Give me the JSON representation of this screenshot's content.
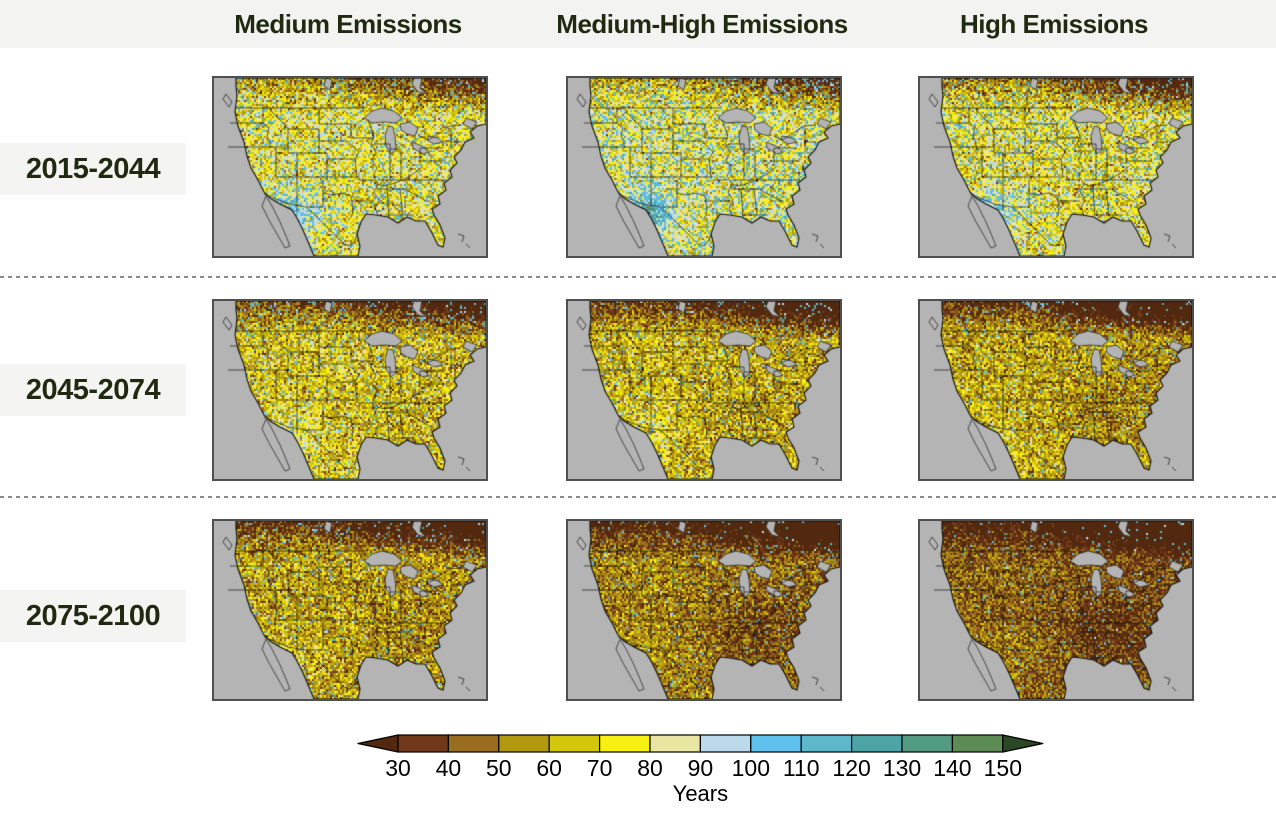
{
  "header": {
    "columns": [
      "Medium Emissions",
      "Medium-High Emissions",
      "High Emissions"
    ]
  },
  "row_labels": [
    "2015-2044",
    "2045-2074",
    "2075-2100"
  ],
  "styles": {
    "band_bg": "#f3f3f1",
    "label_box_bg": "#f4f4f2",
    "heading_color": "#1f2a10",
    "separator_color": "#8c8c8c",
    "frame_color": "#4f4f4f",
    "figure_bg": "#ffffff"
  },
  "chart_data": {
    "type": "heatmap",
    "columns": [
      "Medium Emissions",
      "Medium-High Emissions",
      "High Emissions"
    ],
    "rows": [
      "2015-2044",
      "2045-2074",
      "2075-2100"
    ],
    "description_of_panels": "3x3 grid of conterminous US maps; speckled values in Years, browner (fewer years) toward later periods and higher emissions, especially in Canada/Northeast and Southeast; scattered blue specks (more years) mainly in the West for early periods",
    "ocean_color": "#b4b4b4",
    "colorbar": {
      "label": "Years",
      "ticks": [
        30,
        40,
        50,
        60,
        70,
        80,
        90,
        100,
        110,
        120,
        130,
        140,
        150
      ],
      "segment_colors": [
        "#71391a",
        "#9a6c1f",
        "#b2980e",
        "#d4c50d",
        "#f8ef14",
        "#e9e5a3",
        "#bcdaec",
        "#5ec1ee",
        "#5db8cb",
        "#4da4a6",
        "#539b82",
        "#5c8b54"
      ],
      "under_arrow_color": "#52290e",
      "over_arrow_color": "#2c4726"
    },
    "panels": [
      {
        "row": "2015-2044",
        "col": "Medium Emissions",
        "mean_years": 77,
        "north": 24,
        "ne": 36,
        "east": 2,
        "se": 0,
        "sw": 30,
        "blue": 0.1,
        "spread": 17,
        "seed": 11
      },
      {
        "row": "2015-2044",
        "col": "Medium-High Emissions",
        "mean_years": 79,
        "north": 22,
        "ne": 40,
        "east": 0,
        "se": 0,
        "sw": 45,
        "blue": 0.15,
        "spread": 17,
        "seed": 22
      },
      {
        "row": "2015-2044",
        "col": "High Emissions",
        "mean_years": 75,
        "north": 26,
        "ne": 40,
        "east": 2,
        "se": 0,
        "sw": 25,
        "blue": 0.11,
        "spread": 17,
        "seed": 33
      },
      {
        "row": "2045-2074",
        "col": "Medium Emissions",
        "mean_years": 67,
        "north": 30,
        "ne": 36,
        "east": 5,
        "se": 4,
        "sw": 15,
        "blue": 0.07,
        "spread": 16,
        "seed": 44
      },
      {
        "row": "2045-2074",
        "col": "Medium-High Emissions",
        "mean_years": 63,
        "north": 32,
        "ne": 38,
        "east": 7,
        "se": 6,
        "sw": 15,
        "blue": 0.06,
        "spread": 16,
        "seed": 55
      },
      {
        "row": "2045-2074",
        "col": "High Emissions",
        "mean_years": 60,
        "north": 32,
        "ne": 40,
        "east": 9,
        "se": 8,
        "sw": 10,
        "blue": 0.05,
        "spread": 15,
        "seed": 66
      },
      {
        "row": "2075-2100",
        "col": "Medium Emissions",
        "mean_years": 59,
        "north": 30,
        "ne": 38,
        "east": 7,
        "se": 6,
        "sw": 8,
        "blue": 0.05,
        "spread": 16,
        "seed": 77
      },
      {
        "row": "2075-2100",
        "col": "Medium-High Emissions",
        "mean_years": 51,
        "north": 30,
        "ne": 40,
        "east": 11,
        "se": 12,
        "sw": 6,
        "blue": 0.04,
        "spread": 15,
        "seed": 88
      },
      {
        "row": "2075-2100",
        "col": "High Emissions",
        "mean_years": 45,
        "north": 28,
        "ne": 40,
        "east": 12,
        "se": 12,
        "sw": 5,
        "blue": 0.03,
        "spread": 14,
        "seed": 99
      }
    ]
  }
}
